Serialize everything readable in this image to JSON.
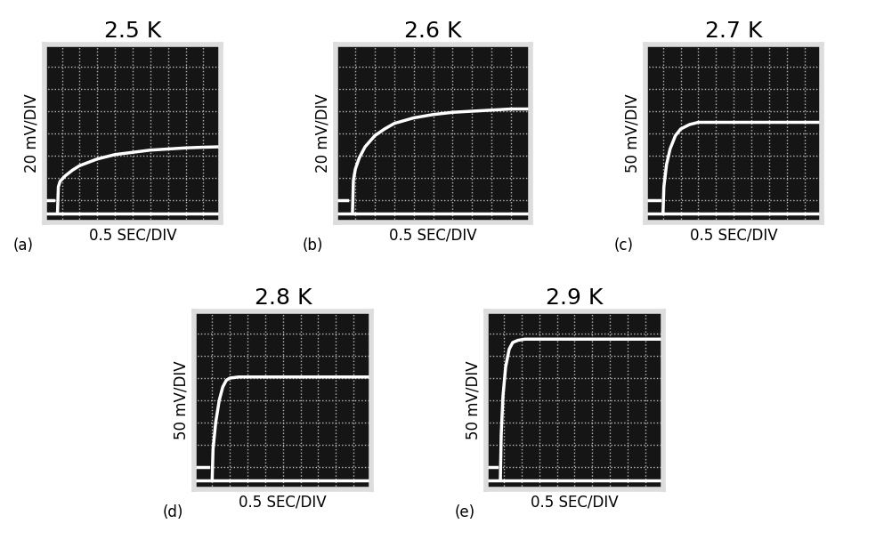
{
  "chart_data": [
    {
      "type": "line",
      "title": "2.5 K",
      "y_label": "20 mV/DIV",
      "x_label": "0.5 SEC/DIV",
      "annotation": "(a)",
      "xlim": [
        0,
        10
      ],
      "ylim": [
        0,
        8
      ],
      "xticks": [
        0,
        1,
        2,
        3,
        4,
        5,
        6,
        7,
        8,
        9,
        10
      ],
      "yticks": [
        0,
        1,
        2,
        3,
        4,
        5,
        6,
        7,
        8
      ],
      "grid": true,
      "tick_labels": false,
      "series": [
        {
          "color": "#ffffff",
          "line_style": "solid",
          "x": [
            0,
            10
          ],
          "values": [
            0.4,
            0.4
          ]
        },
        {
          "color": "#ffffff",
          "line_style": "solid",
          "x": [
            0,
            0.5
          ],
          "values": [
            1.0,
            1.0
          ]
        },
        {
          "color": "#ffffff",
          "line_style": "solid",
          "x": [
            0.75,
            0.8,
            0.9,
            1.2,
            1.6,
            2,
            3,
            4,
            5,
            6,
            7,
            8,
            9,
            10
          ],
          "values": [
            0.4,
            1.6,
            1.85,
            2.1,
            2.35,
            2.55,
            2.85,
            3.05,
            3.15,
            3.25,
            3.3,
            3.35,
            3.38,
            3.4
          ]
        }
      ]
    },
    {
      "type": "line",
      "title": "2.6 K",
      "y_label": "20 mV/DIV",
      "x_label": "0.5 SEC/DIV",
      "annotation": "(b)",
      "xlim": [
        0,
        10
      ],
      "ylim": [
        0,
        8
      ],
      "xticks": [
        0,
        1,
        2,
        3,
        4,
        5,
        6,
        7,
        8,
        9,
        10
      ],
      "yticks": [
        0,
        1,
        2,
        3,
        4,
        5,
        6,
        7,
        8
      ],
      "grid": true,
      "tick_labels": false,
      "series": [
        {
          "color": "#ffffff",
          "line_style": "solid",
          "x": [
            0,
            10
          ],
          "values": [
            0.4,
            0.4
          ]
        },
        {
          "color": "#ffffff",
          "line_style": "solid",
          "x": [
            0,
            0.6
          ],
          "values": [
            1.0,
            1.0
          ]
        },
        {
          "color": "#ffffff",
          "line_style": "solid",
          "x": [
            0.85,
            0.9,
            1.0,
            1.2,
            1.5,
            2,
            2.5,
            3,
            4,
            5,
            6,
            7,
            8,
            9,
            10
          ],
          "values": [
            0.4,
            1.9,
            2.4,
            2.9,
            3.4,
            3.9,
            4.2,
            4.45,
            4.7,
            4.85,
            4.95,
            5.0,
            5.05,
            5.1,
            5.1
          ]
        }
      ]
    },
    {
      "type": "line",
      "title": "2.7 K",
      "y_label": "50 mV/DIV",
      "x_label": "0.5 SEC/DIV",
      "annotation": "(c)",
      "xlim": [
        0,
        10
      ],
      "ylim": [
        0,
        8
      ],
      "xticks": [
        0,
        1,
        2,
        3,
        4,
        5,
        6,
        7,
        8,
        9,
        10
      ],
      "yticks": [
        0,
        1,
        2,
        3,
        4,
        5,
        6,
        7,
        8
      ],
      "grid": true,
      "tick_labels": false,
      "series": [
        {
          "color": "#ffffff",
          "line_style": "solid",
          "x": [
            0,
            10
          ],
          "values": [
            0.4,
            0.4
          ]
        },
        {
          "color": "#ffffff",
          "line_style": "solid",
          "x": [
            0,
            0.8
          ],
          "values": [
            1.0,
            1.0
          ]
        },
        {
          "color": "#ffffff",
          "line_style": "solid",
          "x": [
            1.0,
            1.05,
            1.2,
            1.4,
            1.7,
            2,
            2.5,
            3,
            4,
            5,
            6,
            7,
            8,
            9,
            10
          ],
          "values": [
            0.4,
            1.6,
            2.6,
            3.3,
            3.9,
            4.2,
            4.4,
            4.5,
            4.5,
            4.5,
            4.5,
            4.5,
            4.5,
            4.5,
            4.5
          ]
        }
      ]
    },
    {
      "type": "line",
      "title": "2.8 K",
      "y_label": "50 mV/DIV",
      "x_label": "0.5 SEC/DIV",
      "annotation": "(d)",
      "xlim": [
        0,
        10
      ],
      "ylim": [
        0,
        8
      ],
      "xticks": [
        0,
        1,
        2,
        3,
        4,
        5,
        6,
        7,
        8,
        9,
        10
      ],
      "yticks": [
        0,
        1,
        2,
        3,
        4,
        5,
        6,
        7,
        8
      ],
      "grid": true,
      "tick_labels": false,
      "series": [
        {
          "color": "#ffffff",
          "line_style": "solid",
          "x": [
            0,
            10
          ],
          "values": [
            0.4,
            0.4
          ]
        },
        {
          "color": "#ffffff",
          "line_style": "solid",
          "x": [
            0,
            0.8
          ],
          "values": [
            1.0,
            1.0
          ]
        },
        {
          "color": "#ffffff",
          "line_style": "solid",
          "x": [
            1.0,
            1.05,
            1.2,
            1.4,
            1.6,
            1.8,
            2,
            2.5,
            3,
            4,
            5,
            6,
            7,
            8,
            9,
            10
          ],
          "values": [
            0.4,
            1.8,
            3.0,
            4.0,
            4.6,
            4.9,
            5.0,
            5.05,
            5.05,
            5.05,
            5.05,
            5.05,
            5.05,
            5.05,
            5.05,
            5.05
          ]
        }
      ]
    },
    {
      "type": "line",
      "title": "2.9 K",
      "y_label": "50 mV/DIV",
      "x_label": "0.5 SEC/DIV",
      "annotation": "(e)",
      "xlim": [
        0,
        10
      ],
      "ylim": [
        0,
        8
      ],
      "xticks": [
        0,
        1,
        2,
        3,
        4,
        5,
        6,
        7,
        8,
        9,
        10
      ],
      "yticks": [
        0,
        1,
        2,
        3,
        4,
        5,
        6,
        7,
        8
      ],
      "grid": true,
      "tick_labels": false,
      "series": [
        {
          "color": "#ffffff",
          "line_style": "solid",
          "x": [
            0,
            10
          ],
          "values": [
            0.4,
            0.4
          ]
        },
        {
          "color": "#ffffff",
          "line_style": "solid",
          "x": [
            0,
            0.6
          ],
          "values": [
            1.0,
            1.0
          ]
        },
        {
          "color": "#ffffff",
          "line_style": "solid",
          "x": [
            0.8,
            0.85,
            0.95,
            1.1,
            1.3,
            1.5,
            1.8,
            2.2,
            3,
            4,
            5,
            6,
            7,
            8,
            9,
            10
          ],
          "values": [
            0.4,
            2.5,
            4.2,
            5.5,
            6.3,
            6.6,
            6.7,
            6.75,
            6.75,
            6.75,
            6.75,
            6.75,
            6.75,
            6.75,
            6.75,
            6.75
          ]
        }
      ]
    }
  ]
}
